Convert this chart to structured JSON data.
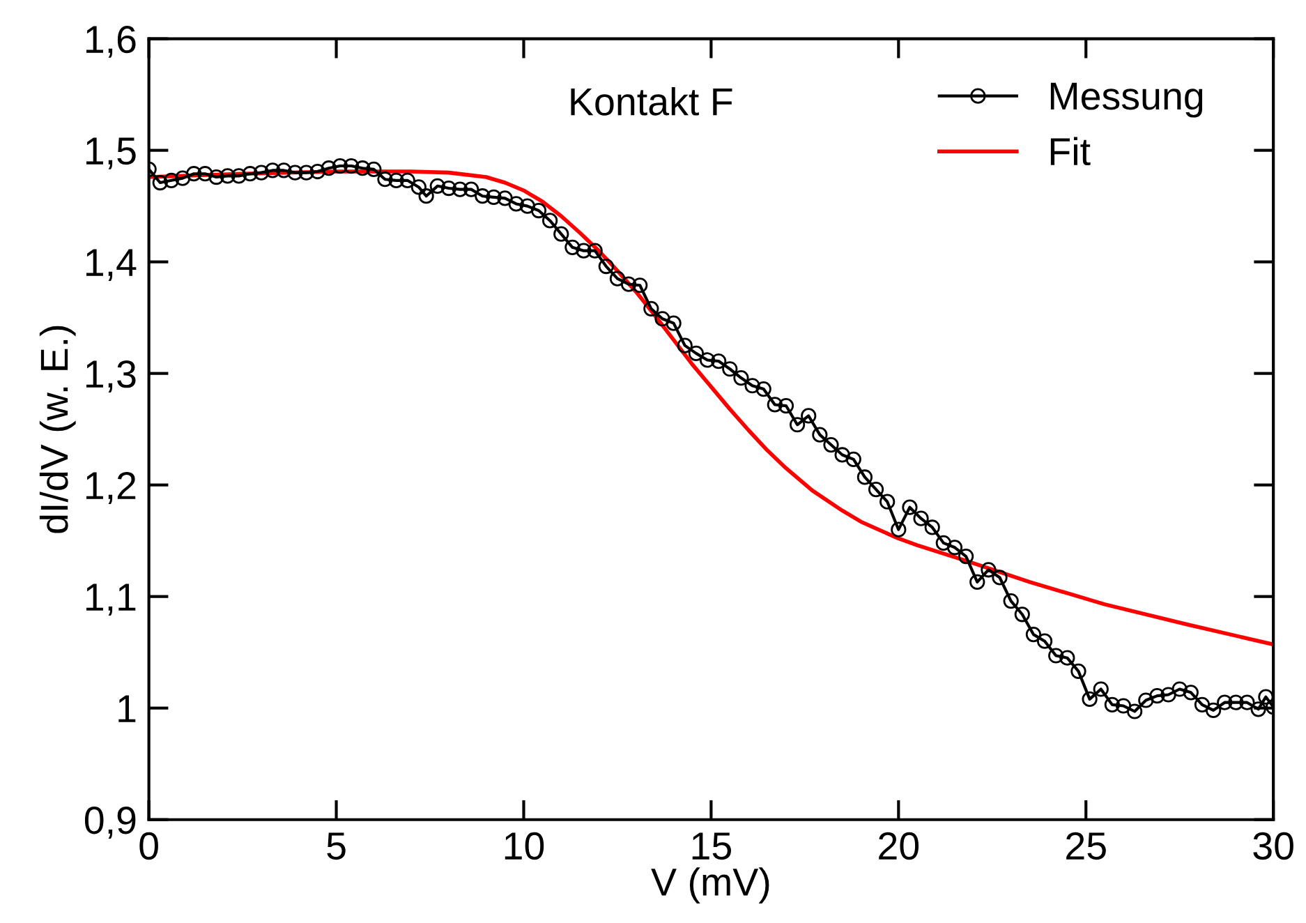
{
  "chart_data": {
    "type": "line",
    "xlabel": "V (mV)",
    "ylabel": "dI/dV (w. E.)",
    "annotations": [
      "Kontakt F"
    ],
    "legend": "top right",
    "grid": false,
    "xlim": [
      0,
      30
    ],
    "xticks": [
      0,
      5,
      10,
      15,
      20,
      25,
      30
    ],
    "ylim": [
      0.9,
      1.6
    ],
    "yticks": [
      {
        "value": 0.9,
        "label": "0,9"
      },
      1,
      {
        "value": 1.1,
        "label": "1,1"
      },
      {
        "value": 1.2,
        "label": "1,2"
      },
      {
        "value": 1.3,
        "label": "1,3"
      },
      {
        "value": 1.4,
        "label": "1,4"
      },
      {
        "value": 1.5,
        "label": "1,5"
      },
      {
        "value": 1.6,
        "label": "1,6"
      }
    ],
    "series": [
      {
        "name": "Messung",
        "color": "#000000",
        "marker": "circle",
        "line_style": "solid",
        "x": [
          0,
          0.3,
          0.6,
          0.9,
          1.2,
          1.5,
          1.8,
          2.1,
          2.4,
          2.7,
          3.0,
          3.3,
          3.6,
          3.9,
          4.2,
          4.5,
          4.8,
          5.1,
          5.4,
          5.7,
          6.0,
          6.3,
          6.6,
          6.9,
          7.2,
          7.4,
          7.7,
          8.0,
          8.3,
          8.6,
          8.9,
          9.2,
          9.5,
          9.8,
          10.1,
          10.4,
          10.7,
          11.0,
          11.3,
          11.6,
          11.9,
          12.2,
          12.5,
          12.8,
          13.1,
          13.4,
          13.7,
          14.0,
          14.3,
          14.6,
          14.9,
          15.2,
          15.5,
          15.8,
          16.1,
          16.4,
          16.7,
          17.0,
          17.3,
          17.6,
          17.9,
          18.2,
          18.5,
          18.8,
          19.1,
          19.4,
          19.7,
          20.0,
          20.3,
          20.6,
          20.9,
          21.2,
          21.5,
          21.8,
          22.1,
          22.4,
          22.7,
          23.0,
          23.3,
          23.6,
          23.9,
          24.2,
          24.5,
          24.8,
          25.1,
          25.4,
          25.7,
          26.0,
          26.3,
          26.6,
          26.9,
          27.2,
          27.5,
          27.8,
          28.1,
          28.4,
          28.7,
          29.0,
          29.3,
          29.6,
          29.8,
          30
        ],
        "values": [
          1.483,
          1.471,
          1.473,
          1.475,
          1.479,
          1.479,
          1.476,
          1.477,
          1.477,
          1.479,
          1.48,
          1.482,
          1.482,
          1.48,
          1.48,
          1.481,
          1.484,
          1.486,
          1.486,
          1.484,
          1.483,
          1.474,
          1.473,
          1.473,
          1.467,
          1.459,
          1.468,
          1.466,
          1.465,
          1.465,
          1.459,
          1.458,
          1.457,
          1.452,
          1.45,
          1.446,
          1.437,
          1.425,
          1.413,
          1.41,
          1.41,
          1.396,
          1.385,
          1.38,
          1.379,
          1.358,
          1.349,
          1.345,
          1.325,
          1.318,
          1.312,
          1.311,
          1.304,
          1.296,
          1.289,
          1.286,
          1.272,
          1.271,
          1.254,
          1.262,
          1.245,
          1.236,
          1.227,
          1.223,
          1.207,
          1.196,
          1.185,
          1.16,
          1.18,
          1.17,
          1.162,
          1.148,
          1.144,
          1.136,
          1.113,
          1.124,
          1.117,
          1.096,
          1.084,
          1.066,
          1.06,
          1.047,
          1.045,
          1.033,
          1.008,
          1.017,
          1.003,
          1.002,
          0.997,
          1.007,
          1.011,
          1.012,
          1.017,
          1.014,
          1.003,
          0.998,
          1.005,
          1.005,
          1.005,
          0.999,
          1.01,
          1.001
        ]
      },
      {
        "name": "Fit",
        "color": "#ff0000",
        "marker": "none",
        "line_style": "solid",
        "x": [
          0,
          2.5,
          5,
          7,
          8,
          9,
          9.5,
          10,
          10.5,
          11,
          11.5,
          12,
          12.5,
          13,
          13.5,
          14,
          14.5,
          15,
          15.5,
          16,
          16.5,
          17,
          17.7,
          18.5,
          19,
          20,
          20.5,
          21.8,
          23.5,
          25.5,
          27.7,
          30
        ],
        "values": [
          1.476,
          1.479,
          1.481,
          1.481,
          1.48,
          1.476,
          1.471,
          1.464,
          1.454,
          1.441,
          1.426,
          1.41,
          1.392,
          1.373,
          1.352,
          1.33,
          1.308,
          1.288,
          1.268,
          1.249,
          1.231,
          1.215,
          1.195,
          1.177,
          1.167,
          1.152,
          1.146,
          1.132,
          1.113,
          1.093,
          1.075,
          1.057
        ]
      }
    ]
  }
}
